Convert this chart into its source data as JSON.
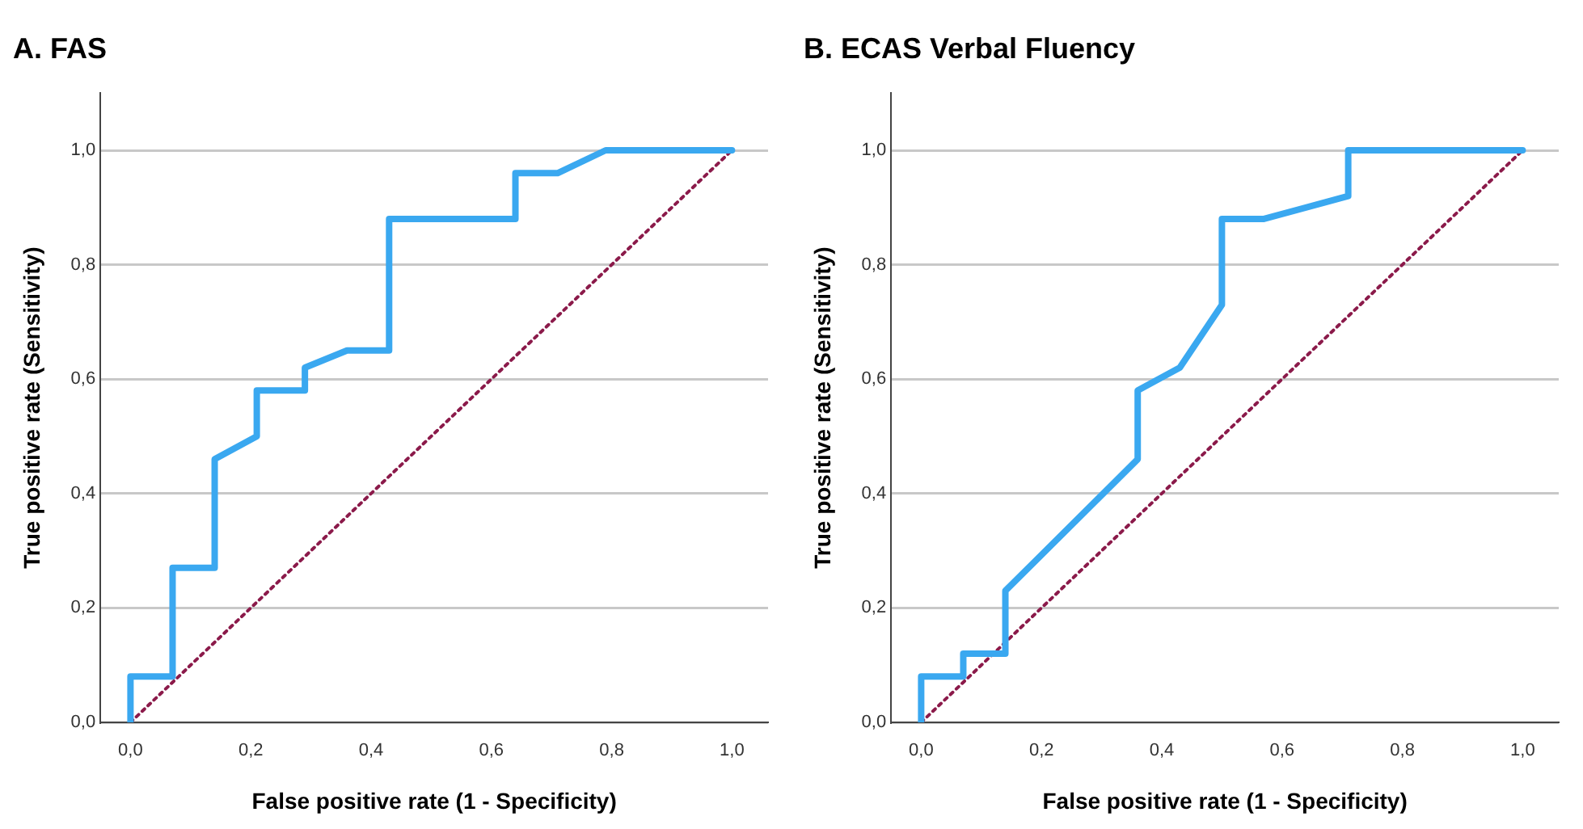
{
  "chart_data": [
    {
      "type": "line",
      "title": "A. FAS",
      "xlabel": "False positive rate (1 - Specificity)",
      "ylabel": "True positive rate (Sensitivity)",
      "xlim": [
        -0.05,
        1.06
      ],
      "ylim": [
        0,
        1.1
      ],
      "xticks": [
        {
          "value": 0,
          "label": "0,0"
        },
        {
          "value": 0.2,
          "label": "0,2"
        },
        {
          "value": 0.4,
          "label": "0,4"
        },
        {
          "value": 0.6,
          "label": "0,6"
        },
        {
          "value": 0.8,
          "label": "0,8"
        },
        {
          "value": 1,
          "label": "1,0"
        }
      ],
      "yticks": [
        {
          "value": 0,
          "label": "0,0"
        },
        {
          "value": 0.2,
          "label": "0,2"
        },
        {
          "value": 0.4,
          "label": "0,4"
        },
        {
          "value": 0.6,
          "label": "0,6"
        },
        {
          "value": 0.8,
          "label": "0,8"
        },
        {
          "value": 1,
          "label": "1,0"
        }
      ],
      "grid": "y",
      "marker": "none",
      "series": [
        {
          "color": "#3aa8f0",
          "line_style": "solid",
          "x": [
            0,
            0,
            0.07,
            0.07,
            0.14,
            0.14,
            0.21,
            0.21,
            0.29,
            0.29,
            0.36,
            0.43,
            0.43,
            0.64,
            0.64,
            0.71,
            0.79,
            1
          ],
          "values": [
            0,
            0.08,
            0.08,
            0.27,
            0.27,
            0.46,
            0.5,
            0.58,
            0.58,
            0.62,
            0.65,
            0.65,
            0.88,
            0.88,
            0.96,
            0.96,
            1,
            1
          ]
        },
        {
          "color": "#8b1a4a",
          "line_style": "dotted",
          "x": [
            0,
            1
          ],
          "values": [
            0,
            1
          ]
        }
      ]
    },
    {
      "type": "line",
      "title": "B. ECAS Verbal Fluency",
      "xlabel": "False positive rate (1 - Specificity)",
      "ylabel": "True positive rate (Sensitivity)",
      "xlim": [
        -0.05,
        1.06
      ],
      "ylim": [
        0,
        1.1
      ],
      "xticks": [
        {
          "value": 0,
          "label": "0,0"
        },
        {
          "value": 0.2,
          "label": "0,2"
        },
        {
          "value": 0.4,
          "label": "0,4"
        },
        {
          "value": 0.6,
          "label": "0,6"
        },
        {
          "value": 0.8,
          "label": "0,8"
        },
        {
          "value": 1,
          "label": "1,0"
        }
      ],
      "yticks": [
        {
          "value": 0,
          "label": "0,0"
        },
        {
          "value": 0.2,
          "label": "0,2"
        },
        {
          "value": 0.4,
          "label": "0,4"
        },
        {
          "value": 0.6,
          "label": "0,6"
        },
        {
          "value": 0.8,
          "label": "0,8"
        },
        {
          "value": 1,
          "label": "1,0"
        }
      ],
      "grid": "y",
      "marker": "none",
      "series": [
        {
          "color": "#3aa8f0",
          "line_style": "solid",
          "x": [
            0,
            0,
            0.07,
            0.07,
            0.14,
            0.14,
            0.36,
            0.36,
            0.43,
            0.5,
            0.5,
            0.57,
            0.71,
            0.71,
            1
          ],
          "values": [
            0,
            0.08,
            0.08,
            0.12,
            0.12,
            0.23,
            0.46,
            0.58,
            0.62,
            0.73,
            0.88,
            0.88,
            0.92,
            1,
            1
          ]
        },
        {
          "color": "#8b1a4a",
          "line_style": "dotted",
          "x": [
            0,
            1
          ],
          "values": [
            0,
            1
          ]
        }
      ]
    }
  ]
}
